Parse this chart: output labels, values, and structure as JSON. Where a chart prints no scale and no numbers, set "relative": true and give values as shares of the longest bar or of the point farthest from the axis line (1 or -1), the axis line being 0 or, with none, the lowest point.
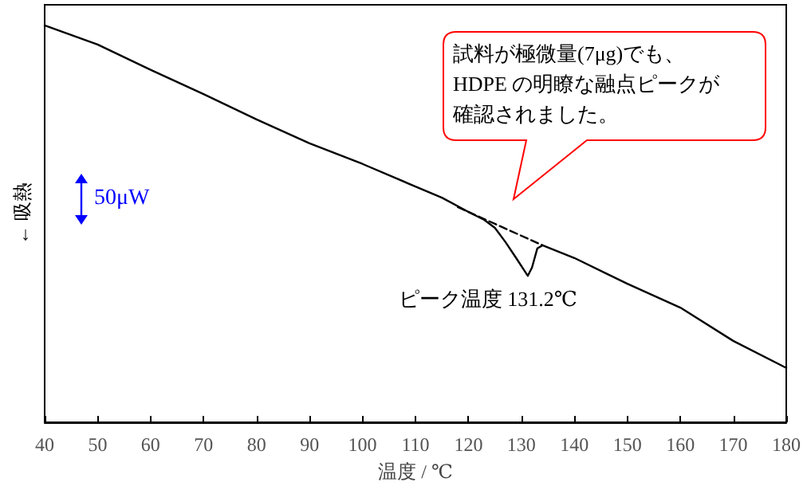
{
  "chart_data": {
    "type": "line",
    "relative": true,
    "xlabel": "温度 / ℃",
    "ylabel": "← 吸熱",
    "xlim": [
      40,
      180
    ],
    "xticks": [
      40,
      50,
      60,
      70,
      80,
      90,
      100,
      110,
      120,
      130,
      140,
      150,
      160,
      170,
      180
    ],
    "grid": false,
    "marker": "none",
    "series": [
      {
        "color": "#000000",
        "line_style": "solid",
        "x": [
          40,
          50,
          60,
          70,
          80,
          90,
          100,
          110,
          115,
          120,
          123,
          125,
          127,
          129,
          131.2,
          132,
          133,
          134,
          140,
          150,
          160,
          170,
          180
        ],
        "values": [
          1.0,
          0.952,
          0.888,
          0.827,
          0.763,
          0.703,
          0.651,
          0.594,
          0.566,
          0.53,
          0.51,
          0.49,
          0.454,
          0.414,
          0.369,
          0.39,
          0.438,
          0.446,
          0.414,
          0.349,
          0.289,
          0.205,
          0.137
        ]
      },
      {
        "color": "#000000",
        "line_style": "dashed",
        "x": [
          118,
          134
        ],
        "values": [
          0.542,
          0.446
        ]
      }
    ],
    "annotations": [
      "試料が極微量(7μg)でも、",
      "HDPE の明瞭な融点ピークが",
      "確認されました。",
      {
        "text": "ピーク温度 131.2℃",
        "x": 131.2,
        "y": 0.369
      },
      "50μW"
    ]
  }
}
